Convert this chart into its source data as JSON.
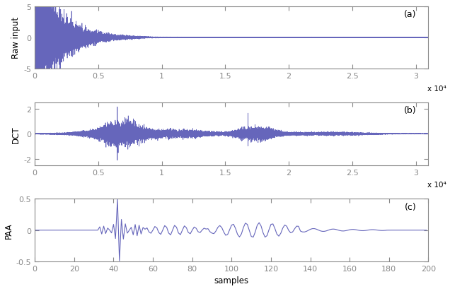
{
  "line_color": "#6666bb",
  "line_width": 0.5,
  "background_color": "#ffffff",
  "panel_a": {
    "label": "Raw input",
    "ylim": [
      -5,
      5
    ],
    "yticks": [
      -5,
      0,
      5
    ],
    "xlim": [
      0,
      31000
    ],
    "xticks": [
      0,
      5000,
      10000,
      15000,
      20000,
      25000,
      30000
    ],
    "xticklabels": [
      "0",
      "0.5",
      "1",
      "1.5",
      "2",
      "2.5",
      "3"
    ],
    "xlabel_x10": "x 10⁴",
    "tag": "(a)"
  },
  "panel_b": {
    "label": "DCT",
    "ylim": [
      -2.5,
      2.5
    ],
    "yticks": [
      -2,
      0,
      2
    ],
    "xlim": [
      0,
      31000
    ],
    "xticks": [
      0,
      5000,
      10000,
      15000,
      20000,
      25000,
      30000
    ],
    "xticklabels": [
      "0",
      "0.5",
      "1",
      "1.5",
      "2",
      "2.5",
      "3"
    ],
    "xlabel_x10": "x 10⁴",
    "tag": "(b)"
  },
  "panel_c": {
    "label": "PAA",
    "ylim": [
      -0.5,
      0.5
    ],
    "yticks": [
      -0.5,
      0,
      0.5
    ],
    "xlim": [
      0,
      200
    ],
    "xticks": [
      0,
      20,
      40,
      60,
      80,
      100,
      120,
      140,
      160,
      180,
      200
    ],
    "xticklabels": [
      "0",
      "20",
      "40",
      "60",
      "80",
      "100",
      "120",
      "140",
      "160",
      "180",
      "200"
    ],
    "xlabel": "samples",
    "tag": "(c)"
  },
  "n_samples": 31000,
  "n_paa": 200
}
